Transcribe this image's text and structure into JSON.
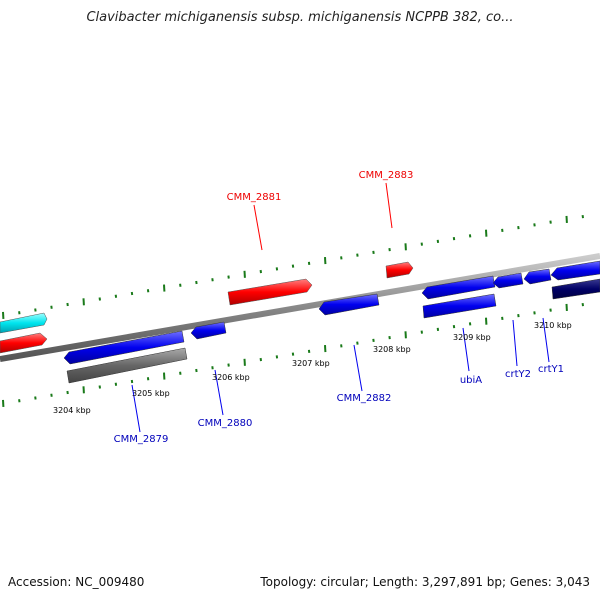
{
  "title": "Clavibacter michiganensis subsp. michiganensis NCPPB 382, co...",
  "footer": {
    "accession": "Accession: NC_009480",
    "summary": "Topology: circular; Length: 3,297,891 bp; Genes: 3,043"
  },
  "colors": {
    "forward_strand": "#ff0000",
    "reverse_strand": "#0000ee",
    "pseudo": "#666666",
    "rna": "#00e5ee",
    "dark": "#000066",
    "ticks": "#1a7a1a",
    "backbone": "#888888"
  },
  "scale_labels": [
    "3204 kbp",
    "3205 kbp",
    "3206 kbp",
    "3207 kbp",
    "3208 kbp",
    "3209 kbp",
    "3210 kbp"
  ],
  "gene_labels": {
    "top": [
      "CMM_2881",
      "CMM_2883"
    ],
    "bottom": [
      "CMM_2879",
      "CMM_2880",
      "CMM_2882",
      "ubiA",
      "crtY2",
      "crtY1"
    ]
  }
}
